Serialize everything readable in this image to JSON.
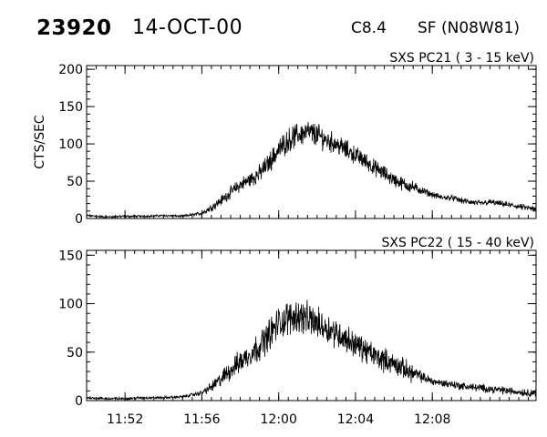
{
  "header": {
    "event_id": "23920",
    "date": "14-OCT-00",
    "goes_class": "C8.4",
    "flare_info": "SF (N08W81)"
  },
  "chart_data": [
    {
      "type": "line",
      "title": "SXS PC21  (  3 - 15 keV)",
      "ylabel": "CTS/SEC",
      "xlabel": "",
      "x_unit": "minutes since 11:50 UT",
      "xlim": [
        0,
        23.4
      ],
      "ylim": [
        0,
        205
      ],
      "yticks": [
        0,
        50,
        100,
        150,
        200
      ],
      "xticks": [
        "11:52",
        "11:56",
        "12:00",
        "12:04",
        "12:08"
      ],
      "xtick_positions": [
        2,
        6,
        10,
        14,
        18
      ],
      "show_xtick_labels": false,
      "series": [
        {
          "name": "",
          "x": [
            0,
            1,
            2,
            3,
            4,
            5,
            6,
            6.5,
            7,
            7.5,
            8,
            8.5,
            9,
            9.5,
            10,
            10.5,
            11,
            11.5,
            12,
            12.5,
            13,
            13.5,
            14,
            14.5,
            15,
            15.5,
            16,
            16.5,
            17,
            17.5,
            18,
            18.5,
            19,
            19.5,
            20,
            20.5,
            21,
            21.5,
            22,
            22.5,
            23,
            23.4
          ],
          "y": [
            4,
            2,
            3,
            3,
            4,
            3,
            7,
            15,
            24,
            35,
            45,
            52,
            60,
            75,
            92,
            105,
            112,
            116,
            112,
            105,
            100,
            92,
            85,
            77,
            68,
            60,
            52,
            46,
            42,
            37,
            32,
            28,
            28,
            24,
            22,
            20,
            22,
            20,
            18,
            16,
            14,
            12
          ],
          "noise": [
            1,
            1,
            1,
            1,
            1,
            1,
            2,
            4,
            5,
            6,
            7,
            8,
            9,
            10,
            11,
            12,
            12,
            12,
            12,
            11,
            10,
            10,
            9,
            9,
            8,
            8,
            7,
            7,
            6,
            4,
            3,
            3,
            3,
            3,
            3,
            3,
            3,
            3,
            3,
            3,
            3,
            3
          ],
          "color": "#000000"
        }
      ]
    },
    {
      "type": "line",
      "title": "SXS PC22  ( 15 - 40 keV)",
      "ylabel": "",
      "xlabel": "",
      "x_unit": "minutes since 11:50 UT",
      "xlim": [
        0,
        23.4
      ],
      "ylim": [
        0,
        155
      ],
      "yticks": [
        0,
        50,
        100,
        150
      ],
      "xticks": [
        "11:52",
        "11:56",
        "12:00",
        "12:04",
        "12:08"
      ],
      "xtick_positions": [
        2,
        6,
        10,
        14,
        18
      ],
      "show_xtick_labels": true,
      "series": [
        {
          "name": "",
          "x": [
            0,
            1,
            2,
            3,
            4,
            5,
            6,
            6.5,
            7,
            7.5,
            8,
            8.5,
            9,
            9.5,
            10,
            10.5,
            11,
            11.5,
            12,
            12.5,
            13,
            13.5,
            14,
            14.5,
            15,
            15.5,
            16,
            16.5,
            17,
            17.5,
            18,
            18.5,
            19,
            19.5,
            20,
            20.5,
            21,
            21.5,
            22,
            22.5,
            23,
            23.4
          ],
          "y": [
            3,
            2,
            2,
            3,
            3,
            4,
            8,
            14,
            22,
            32,
            40,
            48,
            56,
            68,
            80,
            85,
            88,
            84,
            80,
            75,
            70,
            64,
            58,
            52,
            46,
            42,
            38,
            33,
            28,
            24,
            20,
            18,
            17,
            15,
            14,
            13,
            12,
            11,
            10,
            9,
            8,
            8
          ],
          "noise": [
            1,
            1,
            1,
            1,
            1,
            1,
            2,
            4,
            6,
            8,
            9,
            10,
            11,
            12,
            13,
            13,
            13,
            13,
            12,
            12,
            11,
            11,
            10,
            10,
            9,
            9,
            8,
            8,
            7,
            4,
            3,
            3,
            3,
            3,
            3,
            3,
            3,
            3,
            3,
            3,
            3,
            3
          ],
          "color": "#000000"
        }
      ]
    }
  ]
}
